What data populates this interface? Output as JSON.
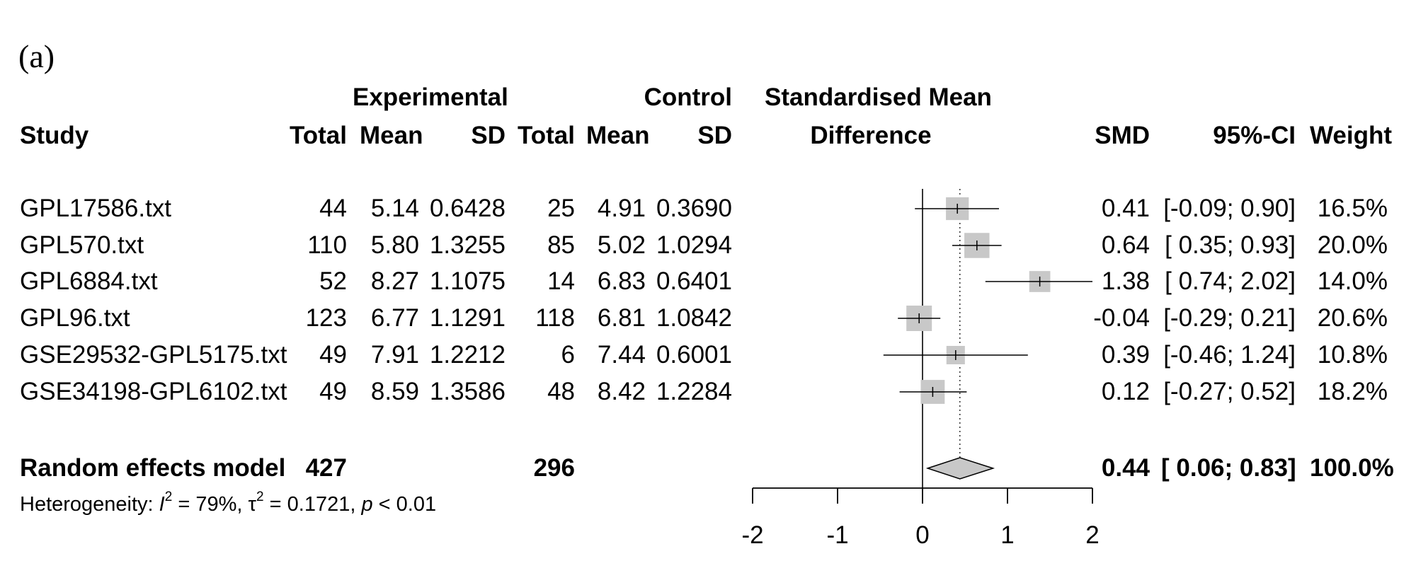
{
  "panel_label": "(a)",
  "headers": {
    "group_experimental": "Experimental",
    "group_control": "Control",
    "plot_title_line1": "Standardised Mean",
    "plot_title_line2": "Difference",
    "study": "Study",
    "exp_total": "Total",
    "exp_mean": "Mean",
    "exp_sd": "SD",
    "ctl_total": "Total",
    "ctl_mean": "Mean",
    "ctl_sd": "SD",
    "smd": "SMD",
    "ci": "95%-CI",
    "weight": "Weight"
  },
  "heterogeneity": {
    "prefix": "Heterogeneity: ",
    "i_symbol": "I",
    "sup1": "2",
    "i2_text": " = 79%, ",
    "tau_symbol": "τ",
    "sup2": "2",
    "tau_text": " = 0.1721, ",
    "p_symbol": "p",
    "p_text": " < 0.01"
  },
  "chart_data": {
    "type": "forest",
    "title": "Standardised Mean Difference",
    "xlim": [
      -2,
      2
    ],
    "xticks": [
      -2,
      -1,
      0,
      1,
      2
    ],
    "xtick_labels": [
      "-2",
      "-1",
      "0",
      "1",
      "2"
    ],
    "studies": [
      {
        "name": "GPL17586.txt",
        "exp_total": "44",
        "exp_mean": "5.14",
        "exp_sd": "0.6428",
        "ctl_total": "25",
        "ctl_mean": "4.91",
        "ctl_sd": "0.3690",
        "smd_text": "0.41",
        "ci_text": "[-0.09; 0.90]",
        "weight_text": "16.5%",
        "smd": 0.41,
        "lower": -0.09,
        "upper": 0.9,
        "weight": 16.5
      },
      {
        "name": "GPL570.txt",
        "exp_total": "110",
        "exp_mean": "5.80",
        "exp_sd": "1.3255",
        "ctl_total": "85",
        "ctl_mean": "5.02",
        "ctl_sd": "1.0294",
        "smd_text": "0.64",
        "ci_text": "[ 0.35; 0.93]",
        "weight_text": "20.0%",
        "smd": 0.64,
        "lower": 0.35,
        "upper": 0.93,
        "weight": 20.0
      },
      {
        "name": "GPL6884.txt",
        "exp_total": "52",
        "exp_mean": "8.27",
        "exp_sd": "1.1075",
        "ctl_total": "14",
        "ctl_mean": "6.83",
        "ctl_sd": "0.6401",
        "smd_text": "1.38",
        "ci_text": "[ 0.74; 2.02]",
        "weight_text": "14.0%",
        "smd": 1.38,
        "lower": 0.74,
        "upper": 2.02,
        "weight": 14.0
      },
      {
        "name": "GPL96.txt",
        "exp_total": "123",
        "exp_mean": "6.77",
        "exp_sd": "1.1291",
        "ctl_total": "118",
        "ctl_mean": "6.81",
        "ctl_sd": "1.0842",
        "smd_text": "-0.04",
        "ci_text": "[-0.29; 0.21]",
        "weight_text": "20.6%",
        "smd": -0.04,
        "lower": -0.29,
        "upper": 0.21,
        "weight": 20.6
      },
      {
        "name": "GSE29532-GPL5175.txt",
        "exp_total": "49",
        "exp_mean": "7.91",
        "exp_sd": "1.2212",
        "ctl_total": "6",
        "ctl_mean": "7.44",
        "ctl_sd": "0.6001",
        "smd_text": "0.39",
        "ci_text": "[-0.46; 1.24]",
        "weight_text": "10.8%",
        "smd": 0.39,
        "lower": -0.46,
        "upper": 1.24,
        "weight": 10.8
      },
      {
        "name": "GSE34198-GPL6102.txt",
        "exp_total": "49",
        "exp_mean": "8.59",
        "exp_sd": "1.3586",
        "ctl_total": "48",
        "ctl_mean": "8.42",
        "ctl_sd": "1.2284",
        "smd_text": "0.12",
        "ci_text": "[-0.27; 0.52]",
        "weight_text": "18.2%",
        "smd": 0.12,
        "lower": -0.27,
        "upper": 0.52,
        "weight": 18.2
      }
    ],
    "pooled": {
      "name": "Random effects model",
      "exp_total": "427",
      "ctl_total": "296",
      "smd_text": "0.44",
      "ci_text": "[ 0.06; 0.83]",
      "weight_text": "100.0%",
      "smd": 0.44,
      "lower": 0.06,
      "upper": 0.83
    },
    "colors": {
      "square": "#c8c8c8",
      "diamond": "#c8c8c8",
      "line": "#000000"
    }
  }
}
